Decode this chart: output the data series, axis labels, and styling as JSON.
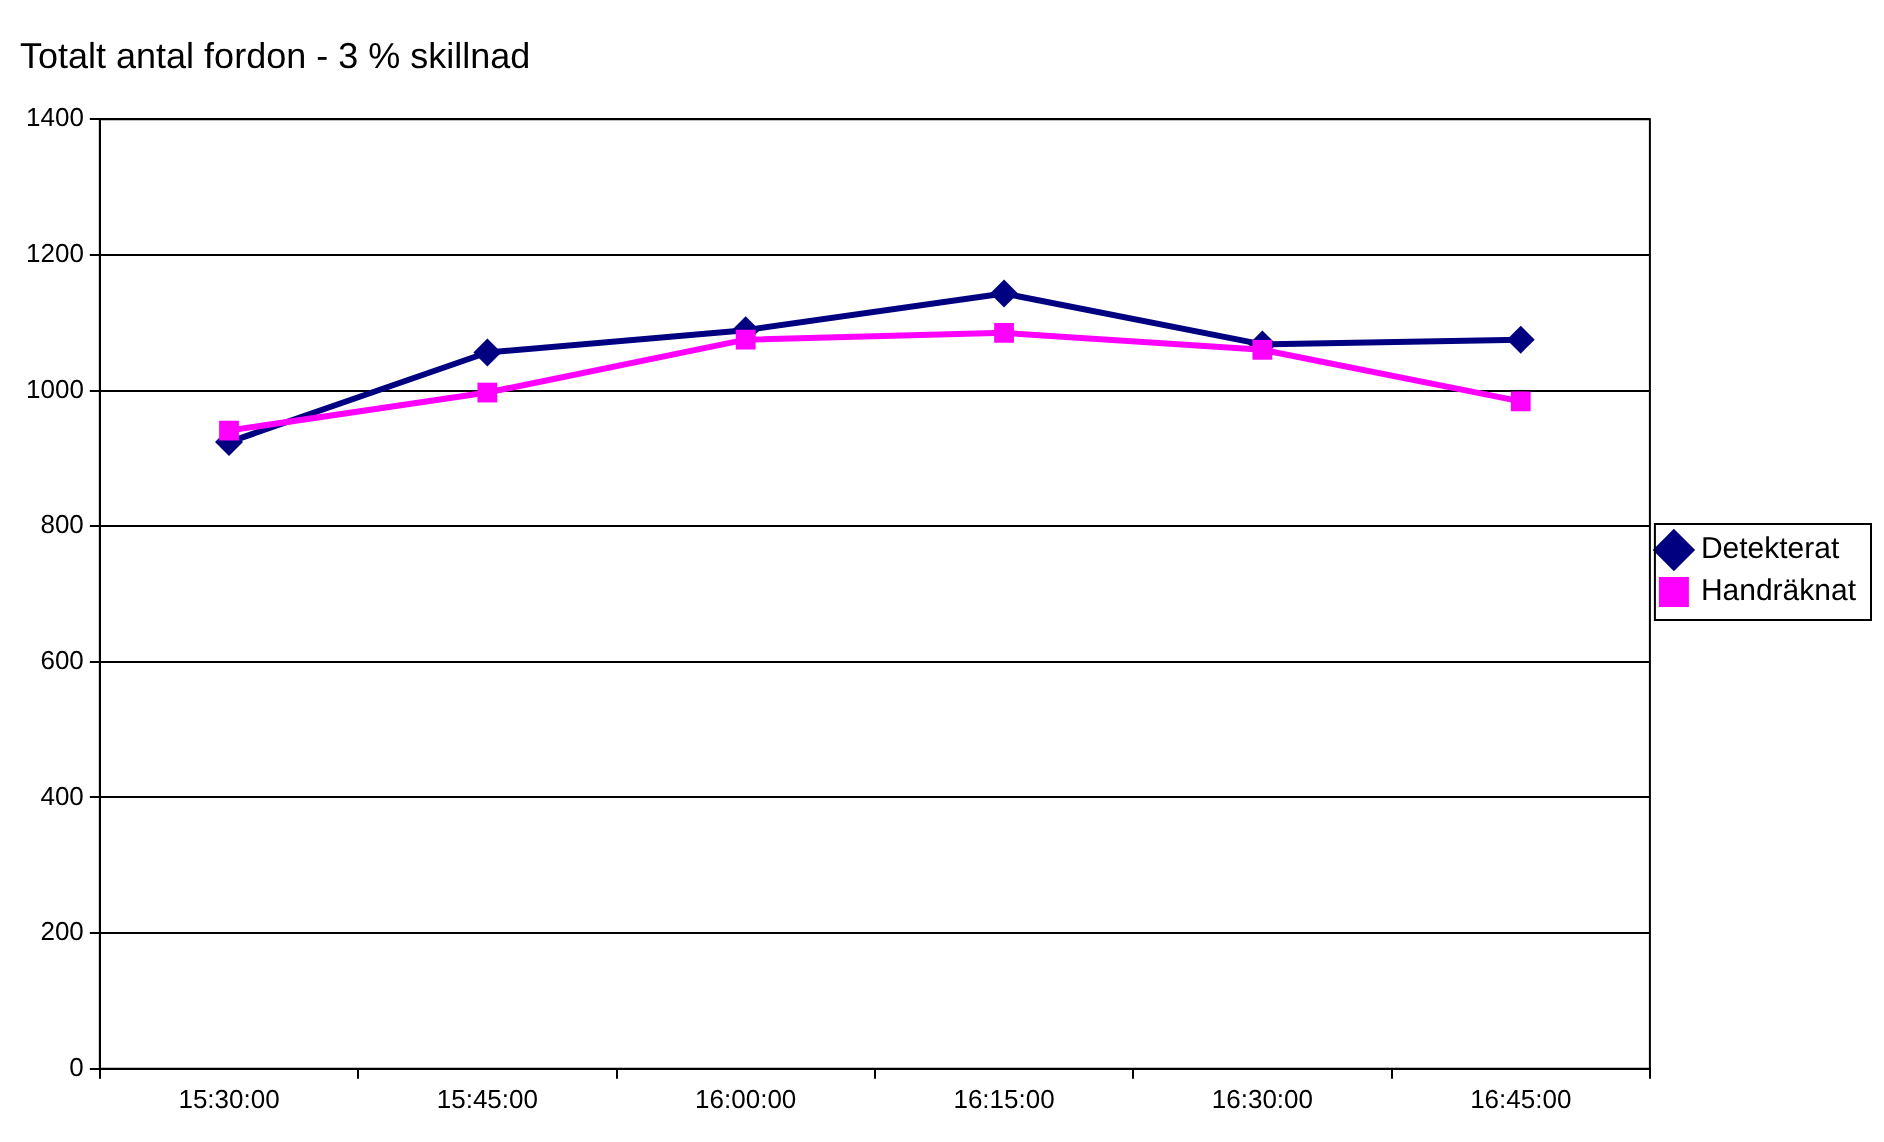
{
  "chart_data": {
    "type": "line",
    "title": "Totalt antal fordon - 3 % skillnad",
    "categories": [
      "15:30:00",
      "15:45:00",
      "16:00:00",
      "16:15:00",
      "16:30:00",
      "16:45:00"
    ],
    "series": [
      {
        "name": "Detekterat",
        "color": "#000080",
        "marker": "diamond",
        "values": [
          924,
          1056,
          1089,
          1143,
          1068,
          1075
        ]
      },
      {
        "name": "Handräknat",
        "color": "#ff00ff",
        "marker": "square",
        "values": [
          941,
          997,
          1075,
          1085,
          1060,
          984
        ]
      }
    ],
    "ylim": [
      0,
      1400
    ],
    "yticks": [
      0,
      200,
      400,
      600,
      800,
      1000,
      1200,
      1400
    ],
    "grid": "y",
    "legend": "right",
    "line_style": "solid"
  }
}
